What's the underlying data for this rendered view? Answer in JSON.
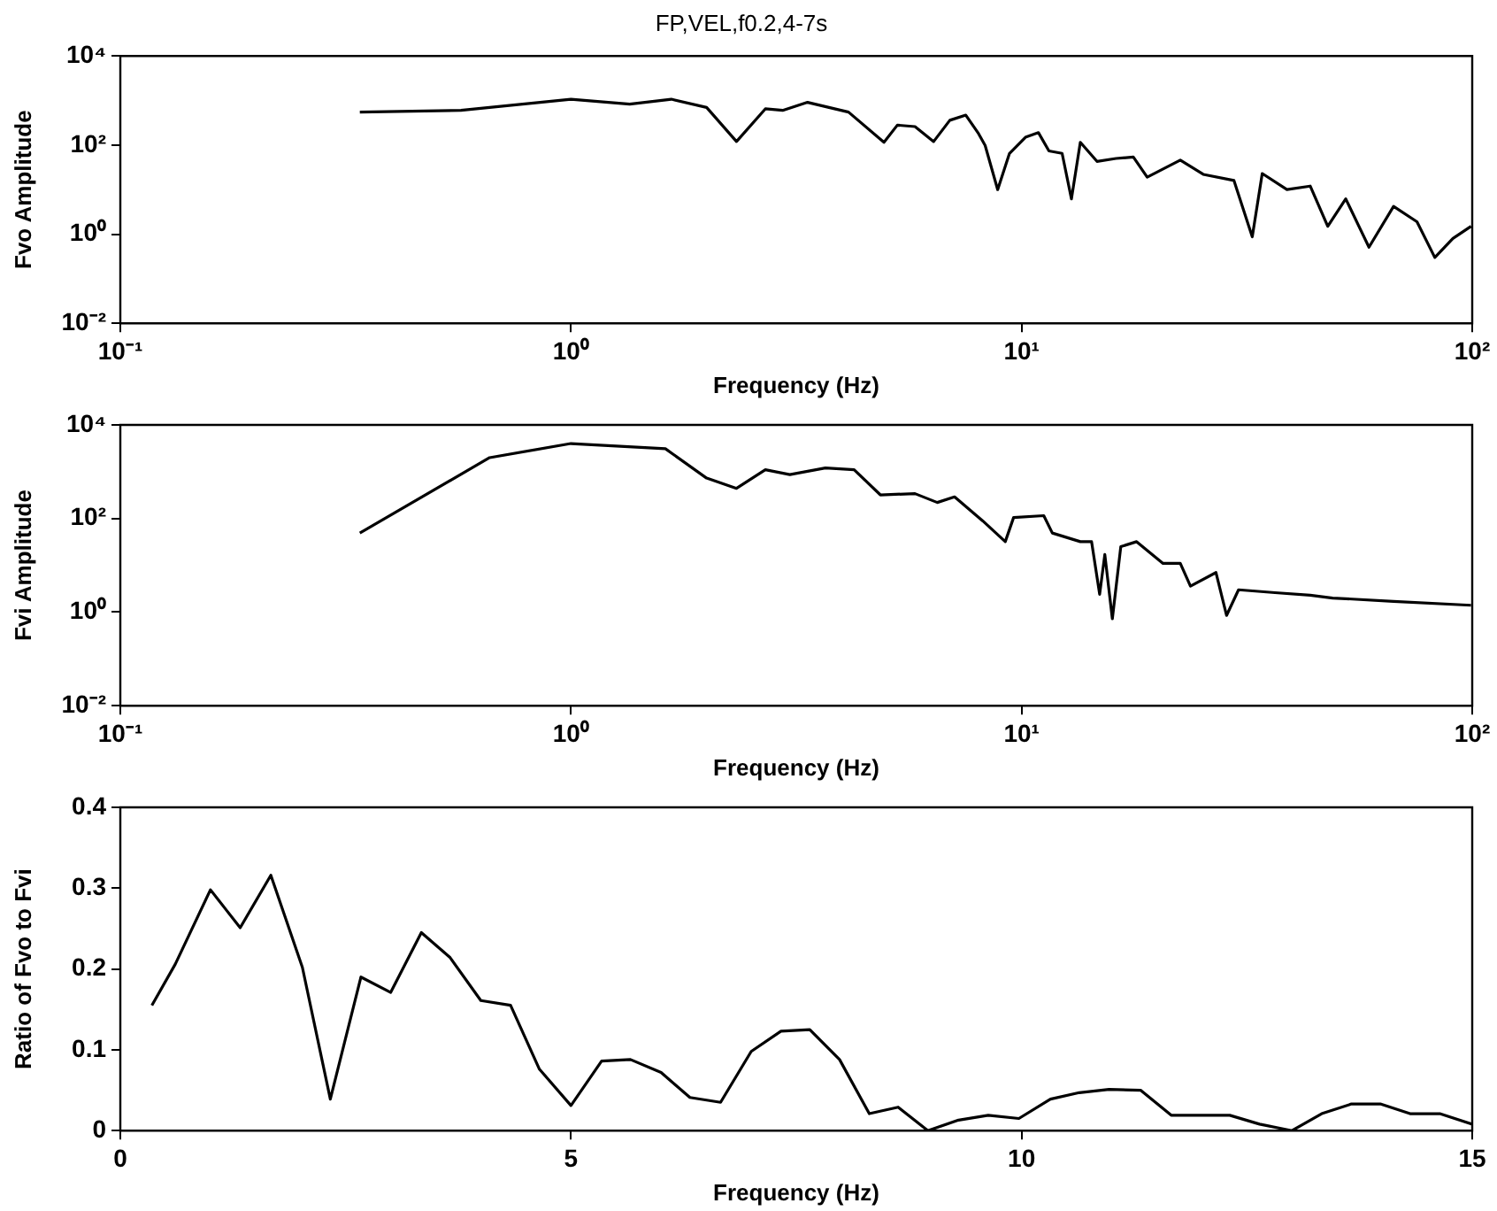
{
  "chart_data": [
    {
      "type": "line",
      "title": "FP,VEL,f0.2,4-7s",
      "xlabel": "Frequency (Hz)",
      "ylabel": "Fvo Amplitude",
      "log": "xy",
      "grid": false,
      "xlim": [
        0.1,
        100
      ],
      "xticks": [
        {
          "value": 0.1,
          "label": "10⁻¹"
        },
        {
          "value": 1,
          "label": "10⁰"
        },
        {
          "value": 10,
          "label": "10¹"
        },
        {
          "value": 100,
          "label": "10²"
        }
      ],
      "ylim": [
        0.01,
        10000
      ],
      "yticks": [
        {
          "value": 0.01,
          "label": "10⁻²"
        },
        {
          "value": 1,
          "label": "10⁰"
        },
        {
          "value": 100,
          "label": "10²"
        },
        {
          "value": 10000,
          "label": "10⁴"
        }
      ],
      "x": [
        0.34,
        0.57,
        1.0,
        1.35,
        1.67,
        2.0,
        2.33,
        2.7,
        2.95,
        3.35,
        4.13,
        4.95,
        5.3,
        5.8,
        6.38,
        6.93,
        7.52,
        8.0,
        8.3,
        8.85,
        9.4,
        10.2,
        10.9,
        11.5,
        12.3,
        12.9,
        13.5,
        14.7,
        16.2,
        17.7,
        19,
        22.5,
        25.3,
        29.6,
        32.5,
        34.2,
        38.8,
        43.7,
        47.8,
        52.4,
        59,
        66.9,
        75.4,
        82.6,
        90.6,
        99.4
      ],
      "series": [
        {
          "color": "#000000",
          "values": [
            550,
            600,
            1070,
            830,
            1070,
            700,
            120,
            650,
            600,
            910,
            550,
            115,
            280,
            260,
            120,
            360,
            470,
            190,
            98,
            10,
            65,
            150,
            190,
            74,
            65,
            6.2,
            115,
            43,
            50,
            54,
            19,
            46,
            22,
            16,
            0.87,
            23,
            10,
            12,
            1.5,
            6.2,
            0.51,
            4.2,
            1.9,
            0.3,
            0.8,
            1.5
          ]
        }
      ]
    },
    {
      "type": "line",
      "xlabel": "Frequency (Hz)",
      "ylabel": "Fvi Amplitude",
      "log": "xy",
      "grid": false,
      "xlim": [
        0.1,
        100
      ],
      "xticks": [
        {
          "value": 0.1,
          "label": "10⁻¹"
        },
        {
          "value": 1,
          "label": "10⁰"
        },
        {
          "value": 10,
          "label": "10¹"
        },
        {
          "value": 100,
          "label": "10²"
        }
      ],
      "ylim": [
        0.01,
        10000
      ],
      "yticks": [
        {
          "value": 0.01,
          "label": "10⁻²"
        },
        {
          "value": 1,
          "label": "10⁰"
        },
        {
          "value": 100,
          "label": "10²"
        },
        {
          "value": 10000,
          "label": "10⁴"
        }
      ],
      "x": [
        0.34,
        0.66,
        1.0,
        1.62,
        2.0,
        2.33,
        2.7,
        3.06,
        3.67,
        4.25,
        4.86,
        5.8,
        6.5,
        7.1,
        8.2,
        9.2,
        9.6,
        11.2,
        11.7,
        13.5,
        14.3,
        14.9,
        15.3,
        15.9,
        16.6,
        18.0,
        20.6,
        22.5,
        23.7,
        27,
        28.5,
        30.3,
        36.5,
        43.7,
        49,
        66.9,
        99.4
      ],
      "series": [
        {
          "color": "#000000",
          "values": [
            49,
            2000,
            4000,
            3100,
            730,
            440,
            1100,
            870,
            1200,
            1100,
            320,
            340,
            220,
            290,
            89,
            32,
            105,
            115,
            49,
            32,
            32,
            2.4,
            17,
            0.72,
            25,
            32,
            11,
            11,
            3.6,
            7,
            0.85,
            3.0,
            2.6,
            2.3,
            2.0,
            1.7,
            1.4
          ]
        }
      ]
    },
    {
      "type": "line",
      "xlabel": "Frequency (Hz)",
      "ylabel": "Ratio of Fvo to Fvi",
      "grid": false,
      "xlim": [
        0,
        15
      ],
      "xticks": [
        0,
        5,
        10,
        15
      ],
      "ylim": [
        0,
        0.4
      ],
      "yticks": [
        0,
        0.1,
        0.2,
        0.3,
        0.4
      ],
      "x": [
        0.35,
        0.61,
        1.0,
        1.33,
        1.67,
        2.02,
        2.33,
        2.67,
        3.0,
        3.34,
        3.66,
        4.0,
        4.33,
        4.65,
        5.0,
        5.34,
        5.66,
        6.0,
        6.32,
        6.66,
        7.0,
        7.33,
        7.65,
        7.98,
        8.31,
        8.63,
        8.96,
        9.3,
        9.63,
        9.97,
        10.32,
        10.64,
        10.97,
        11.32,
        11.66,
        11.99,
        12.31,
        12.64,
        13.0,
        13.33,
        13.66,
        13.98,
        14.31,
        14.64,
        15.0
      ],
      "series": [
        {
          "color": "#000000",
          "values": [
            0.155,
            0.206,
            0.298,
            0.251,
            0.316,
            0.202,
            0.039,
            0.19,
            0.171,
            0.245,
            0.214,
            0.161,
            0.155,
            0.076,
            0.031,
            0.086,
            0.088,
            0.072,
            0.041,
            0.035,
            0.098,
            0.123,
            0.125,
            0.088,
            0.021,
            0.029,
            0.0,
            0.013,
            0.019,
            0.015,
            0.039,
            0.047,
            0.051,
            0.05,
            0.019,
            0.019,
            0.019,
            0.008,
            0.0,
            0.021,
            0.033,
            0.033,
            0.021,
            0.021,
            0.008
          ]
        }
      ]
    }
  ]
}
